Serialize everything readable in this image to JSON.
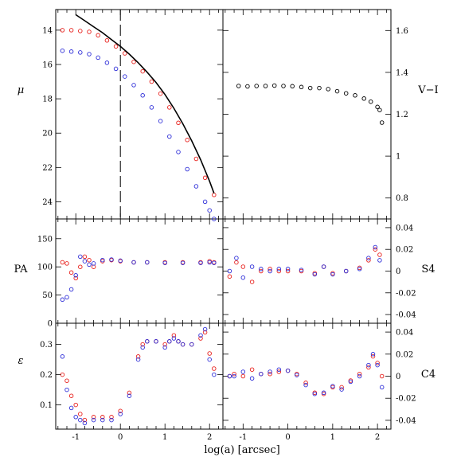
{
  "colors": {
    "red": "#e8211d",
    "blue": "#2f2fd8",
    "black": "#000000"
  },
  "chart_data": [
    {
      "id": "mu",
      "type": "scatter",
      "ylabel": "μ",
      "xlim": [
        -1.45,
        2.3
      ],
      "ylim": [
        25,
        12.8
      ],
      "yinverted": true,
      "yticks": [
        "14",
        "16",
        "18",
        "20",
        "22",
        "24"
      ],
      "ytick_values": [
        14,
        16,
        18,
        20,
        22,
        24
      ],
      "vline_x": 0,
      "series": [
        {
          "color": "red",
          "marker": "open-circle",
          "x": [
            -1.3,
            -1.1,
            -0.9,
            -0.7,
            -0.5,
            -0.3,
            -0.1,
            0.1,
            0.3,
            0.5,
            0.7,
            0.9,
            1.1,
            1.3,
            1.5,
            1.7,
            1.9,
            2.1
          ],
          "y": [
            14.0,
            14.0,
            14.05,
            14.1,
            14.3,
            14.6,
            14.95,
            15.35,
            15.85,
            16.4,
            17.0,
            17.7,
            18.5,
            19.4,
            20.4,
            21.5,
            22.6,
            23.6
          ]
        },
        {
          "color": "blue",
          "marker": "open-circle",
          "x": [
            -1.3,
            -1.1,
            -0.9,
            -0.7,
            -0.5,
            -0.3,
            -0.1,
            0.1,
            0.3,
            0.5,
            0.7,
            0.9,
            1.1,
            1.3,
            1.5,
            1.7,
            1.9,
            2.0,
            2.1
          ],
          "y": [
            15.2,
            15.25,
            15.3,
            15.4,
            15.6,
            15.9,
            16.25,
            16.7,
            17.2,
            17.8,
            18.5,
            19.3,
            20.2,
            21.1,
            22.1,
            23.1,
            24.0,
            24.5,
            25.0
          ]
        },
        {
          "color": "black",
          "marker": "line",
          "x": [
            -1.0,
            -0.8,
            -0.6,
            -0.4,
            -0.2,
            0.0,
            0.2,
            0.4,
            0.6,
            0.8,
            1.0,
            1.2,
            1.4,
            1.6,
            1.8,
            2.0,
            2.1
          ],
          "y": [
            13.1,
            13.45,
            13.8,
            14.15,
            14.55,
            14.95,
            15.4,
            15.9,
            16.45,
            17.05,
            17.75,
            18.55,
            19.45,
            20.45,
            21.55,
            22.8,
            23.5
          ]
        }
      ]
    },
    {
      "id": "vi",
      "type": "scatter",
      "ylabel": "V−I",
      "xlim": [
        -1.45,
        2.3
      ],
      "ylim": [
        0.7,
        1.7
      ],
      "yticks": [
        "0.8",
        "1",
        "1.2",
        "1.4",
        "1.6"
      ],
      "ytick_values": [
        0.8,
        1.0,
        1.2,
        1.4,
        1.6
      ],
      "series": [
        {
          "color": "black",
          "marker": "open-circle",
          "x": [
            -1.1,
            -0.9,
            -0.7,
            -0.5,
            -0.3,
            -0.1,
            0.1,
            0.3,
            0.5,
            0.7,
            0.9,
            1.1,
            1.3,
            1.5,
            1.7,
            1.85,
            2.0,
            2.05,
            2.1
          ],
          "y": [
            1.335,
            1.333,
            1.335,
            1.335,
            1.337,
            1.335,
            1.334,
            1.33,
            1.325,
            1.325,
            1.32,
            1.31,
            1.3,
            1.29,
            1.275,
            1.26,
            1.235,
            1.22,
            1.16
          ]
        }
      ]
    },
    {
      "id": "pa",
      "type": "scatter",
      "ylabel": "PA",
      "xlim": [
        -1.45,
        2.3
      ],
      "ylim": [
        0,
        185
      ],
      "yticks": [
        "0",
        "50",
        "100",
        "150"
      ],
      "ytick_values": [
        0,
        50,
        100,
        150
      ],
      "series": [
        {
          "color": "red",
          "marker": "open-circle",
          "x": [
            -1.3,
            -1.2,
            -1.1,
            -1.0,
            -0.9,
            -0.8,
            -0.7,
            -0.6,
            -0.4,
            -0.2,
            0.0,
            0.3,
            0.6,
            1.0,
            1.4,
            1.8,
            2.0,
            2.1
          ],
          "y": [
            108,
            106,
            90,
            80,
            100,
            118,
            112,
            100,
            110,
            112,
            110,
            108,
            108,
            108,
            108,
            108,
            110,
            108
          ]
        },
        {
          "color": "blue",
          "marker": "open-circle",
          "x": [
            -1.3,
            -1.2,
            -1.1,
            -1.0,
            -0.9,
            -0.8,
            -0.7,
            -0.6,
            -0.4,
            -0.2,
            0.0,
            0.3,
            0.6,
            1.0,
            1.4,
            1.8,
            2.0,
            2.1
          ],
          "y": [
            42,
            46,
            60,
            85,
            118,
            110,
            104,
            106,
            112,
            113,
            111,
            108,
            108,
            107,
            107,
            107,
            108,
            107
          ]
        }
      ]
    },
    {
      "id": "s4",
      "type": "scatter",
      "ylabel": "S4",
      "xlim": [
        -1.45,
        2.3
      ],
      "ylim": [
        -0.048,
        0.048
      ],
      "yticks": [
        "0.04",
        "0.02",
        "0",
        "-0.02",
        "-0.04"
      ],
      "ytick_values": [
        0.04,
        0.02,
        0.0,
        -0.02,
        -0.04
      ],
      "series": [
        {
          "color": "red",
          "marker": "open-circle",
          "x": [
            -1.3,
            -1.15,
            -1.0,
            -0.8,
            -0.6,
            -0.4,
            -0.2,
            0.0,
            0.3,
            0.6,
            0.8,
            1.0,
            1.3,
            1.6,
            1.8,
            1.95,
            2.05
          ],
          "y": [
            -0.005,
            0.008,
            0.004,
            -0.01,
            0.0,
            0.002,
            0.0,
            0.0,
            0.0,
            -0.002,
            0.004,
            -0.002,
            0.0,
            0.003,
            0.01,
            0.02,
            0.015
          ]
        },
        {
          "color": "blue",
          "marker": "open-circle",
          "x": [
            -1.3,
            -1.15,
            -1.0,
            -0.8,
            -0.6,
            -0.4,
            -0.2,
            0.0,
            0.3,
            0.6,
            0.8,
            1.0,
            1.3,
            1.6,
            1.8,
            1.95,
            2.05
          ],
          "y": [
            0.0,
            0.012,
            -0.006,
            0.004,
            0.002,
            0.0,
            0.002,
            0.002,
            0.001,
            -0.003,
            0.004,
            -0.003,
            0.0,
            0.002,
            0.012,
            0.022,
            0.01
          ]
        }
      ]
    },
    {
      "id": "eps",
      "type": "scatter",
      "ylabel": "ε",
      "xlim": [
        -1.45,
        2.3
      ],
      "ylim": [
        0.02,
        0.37
      ],
      "yticks": [
        "0.1",
        "0.2",
        "0.3"
      ],
      "ytick_values": [
        0.1,
        0.2,
        0.3
      ],
      "series": [
        {
          "color": "red",
          "marker": "open-circle",
          "x": [
            -1.3,
            -1.2,
            -1.1,
            -1.0,
            -0.9,
            -0.8,
            -0.6,
            -0.4,
            -0.2,
            0.0,
            0.2,
            0.4,
            0.5,
            0.6,
            0.8,
            1.0,
            1.1,
            1.2,
            1.3,
            1.4,
            1.6,
            1.8,
            1.9,
            2.0,
            2.1
          ],
          "y": [
            0.2,
            0.18,
            0.13,
            0.1,
            0.07,
            0.05,
            0.06,
            0.06,
            0.06,
            0.08,
            0.14,
            0.26,
            0.3,
            0.31,
            0.31,
            0.3,
            0.31,
            0.33,
            0.31,
            0.3,
            0.3,
            0.32,
            0.34,
            0.27,
            0.22
          ]
        },
        {
          "color": "blue",
          "marker": "open-circle",
          "x": [
            -1.3,
            -1.2,
            -1.1,
            -1.0,
            -0.9,
            -0.8,
            -0.6,
            -0.4,
            -0.2,
            0.0,
            0.2,
            0.4,
            0.5,
            0.6,
            0.8,
            1.0,
            1.1,
            1.2,
            1.3,
            1.4,
            1.6,
            1.8,
            1.9,
            2.0,
            2.1
          ],
          "y": [
            0.26,
            0.15,
            0.09,
            0.06,
            0.05,
            0.04,
            0.05,
            0.05,
            0.05,
            0.07,
            0.13,
            0.25,
            0.29,
            0.31,
            0.31,
            0.29,
            0.31,
            0.32,
            0.31,
            0.3,
            0.3,
            0.33,
            0.35,
            0.25,
            0.2
          ]
        }
      ]
    },
    {
      "id": "c4",
      "type": "scatter",
      "ylabel": "C4",
      "xlim": [
        -1.45,
        2.3
      ],
      "ylim": [
        -0.048,
        0.048
      ],
      "yticks": [
        "0.04",
        "0.02",
        "0",
        "-0.02",
        "-0.04"
      ],
      "ytick_values": [
        0.04,
        0.02,
        0.0,
        -0.02,
        -0.04
      ],
      "series": [
        {
          "color": "red",
          "marker": "open-circle",
          "x": [
            -1.3,
            -1.2,
            -1.0,
            -0.8,
            -0.6,
            -0.4,
            -0.2,
            0.0,
            0.2,
            0.4,
            0.6,
            0.8,
            1.0,
            1.2,
            1.4,
            1.6,
            1.8,
            1.9,
            2.0,
            2.1
          ],
          "y": [
            0.0,
            0.002,
            0.0,
            0.006,
            0.002,
            0.002,
            0.004,
            0.005,
            0.002,
            -0.006,
            -0.015,
            -0.016,
            -0.01,
            -0.01,
            -0.004,
            0.002,
            0.008,
            0.018,
            0.012,
            0.0
          ]
        },
        {
          "color": "blue",
          "marker": "open-circle",
          "x": [
            -1.3,
            -1.2,
            -1.0,
            -0.8,
            -0.6,
            -0.4,
            -0.2,
            0.0,
            0.2,
            0.4,
            0.6,
            0.8,
            1.0,
            1.2,
            1.4,
            1.6,
            1.8,
            1.9,
            2.0,
            2.1
          ],
          "y": [
            0.0,
            0.0,
            0.004,
            -0.002,
            0.002,
            0.004,
            0.006,
            0.005,
            0.001,
            -0.008,
            -0.016,
            -0.015,
            -0.009,
            -0.012,
            -0.005,
            0.0,
            0.01,
            0.02,
            0.01,
            -0.01
          ]
        }
      ]
    }
  ],
  "xaxis": {
    "label": "log(a) [arcsec]",
    "ticks": [
      "-1",
      "0",
      "1",
      "2"
    ],
    "tick_values": [
      -1,
      0,
      1,
      2
    ]
  }
}
